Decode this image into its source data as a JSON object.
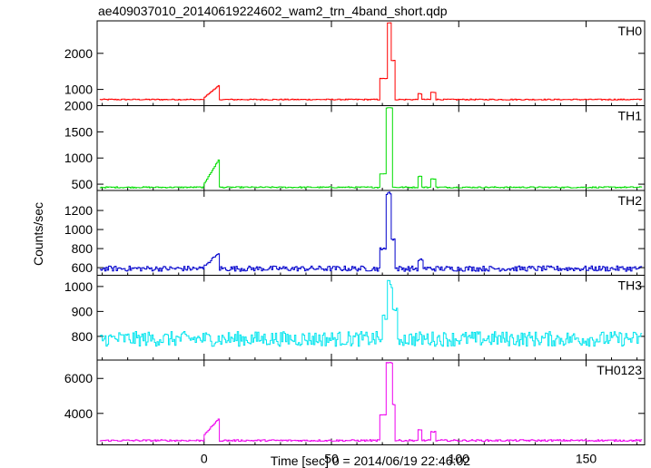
{
  "chart_data": {
    "type": "line",
    "title": "ae409037010_20140619224602_wam2_trn_4band_short.qdp",
    "xlabel": "Time [sec] 0 = 2014/06/19 22:46:02",
    "ylabel": "Counts/sec",
    "xlim": [
      -42,
      173
    ],
    "x_ticks": [
      0,
      50,
      100,
      150
    ],
    "panels": [
      {
        "name": "TH0",
        "color": "#ff0000",
        "ylim": [
          550,
          2900
        ],
        "y_ticks": [
          1000,
          2000
        ],
        "baseline": 720,
        "noise": 15,
        "features": [
          {
            "x": [
              -2,
              6
            ],
            "y": 720
          },
          {
            "x": [
              0,
              6
            ],
            "y": 1130,
            "shape": "ramp",
            "from": 780
          },
          {
            "x": [
              69,
              72
            ],
            "y": 1300
          },
          {
            "x": [
              72,
              73.5
            ],
            "y": 2850
          },
          {
            "x": [
              73.5,
              75
            ],
            "y": 1800
          },
          {
            "x": [
              84,
              85.5
            ],
            "y": 880
          },
          {
            "x": [
              89,
              91
            ],
            "y": 920
          }
        ]
      },
      {
        "name": "TH1",
        "color": "#00dd00",
        "ylim": [
          380,
          2000
        ],
        "y_ticks": [
          500,
          1000,
          1500,
          2000
        ],
        "baseline": 440,
        "noise": 12,
        "features": [
          {
            "x": [
              0,
              6
            ],
            "y": 1000,
            "shape": "ramp",
            "from": 520
          },
          {
            "x": [
              69,
              71.5
            ],
            "y": 700
          },
          {
            "x": [
              71.5,
              74
            ],
            "y": 1960
          },
          {
            "x": [
              84,
              85.5
            ],
            "y": 650
          },
          {
            "x": [
              89,
              91
            ],
            "y": 600
          }
        ]
      },
      {
        "name": "TH2",
        "color": "#0000cc",
        "ylim": [
          520,
          1410
        ],
        "y_ticks": [
          600,
          800,
          1000,
          1200
        ],
        "baseline": 590,
        "noise": 28,
        "features": [
          {
            "x": [
              0,
              6
            ],
            "y": 760,
            "shape": "ramp",
            "from": 620
          },
          {
            "x": [
              69,
              71.5
            ],
            "y": 800
          },
          {
            "x": [
              71.5,
              73.5
            ],
            "y": 1380
          },
          {
            "x": [
              73.5,
              75
            ],
            "y": 900
          },
          {
            "x": [
              84,
              86
            ],
            "y": 680
          }
        ]
      },
      {
        "name": "TH3",
        "color": "#00e5ee",
        "ylim": [
          705,
          1045
        ],
        "y_ticks": [
          800,
          900,
          1000
        ],
        "baseline": 790,
        "noise": 30,
        "features": [
          {
            "x": [
              70,
              72
            ],
            "y": 880
          },
          {
            "x": [
              72,
              74
            ],
            "y": 1010
          },
          {
            "x": [
              74,
              76
            ],
            "y": 900
          }
        ]
      },
      {
        "name": "TH0123",
        "color": "#ee00ee",
        "ylim": [
          2200,
          7050
        ],
        "y_ticks": [
          4000,
          6000
        ],
        "baseline": 2450,
        "noise": 50,
        "features": [
          {
            "x": [
              0,
              6
            ],
            "y": 3750,
            "shape": "ramp",
            "from": 2800
          },
          {
            "x": [
              69,
              71.5
            ],
            "y": 3900
          },
          {
            "x": [
              71.5,
              74
            ],
            "y": 6900
          },
          {
            "x": [
              74,
              75
            ],
            "y": 4500
          },
          {
            "x": [
              84,
              85.5
            ],
            "y": 3050
          },
          {
            "x": [
              89,
              91
            ],
            "y": 2950
          }
        ]
      }
    ]
  }
}
